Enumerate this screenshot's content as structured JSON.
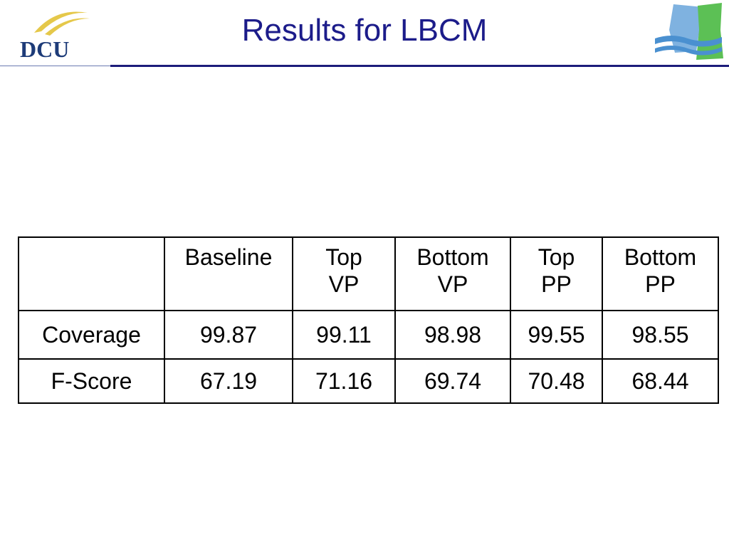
{
  "header": {
    "title": "Results for LBCM",
    "logo": "DCU"
  },
  "table": {
    "columns": [
      [
        "Baseline"
      ],
      [
        "Top",
        "VP"
      ],
      [
        "Bottom",
        "VP"
      ],
      [
        "Top",
        "PP"
      ],
      [
        "Bottom",
        "PP"
      ]
    ],
    "rows": [
      {
        "label": "Coverage",
        "values": [
          99.87,
          99.11,
          98.98,
          99.55,
          98.55
        ]
      },
      {
        "label": "F-Score",
        "values": [
          67.19,
          71.16,
          69.74,
          70.48,
          68.44
        ]
      }
    ]
  }
}
